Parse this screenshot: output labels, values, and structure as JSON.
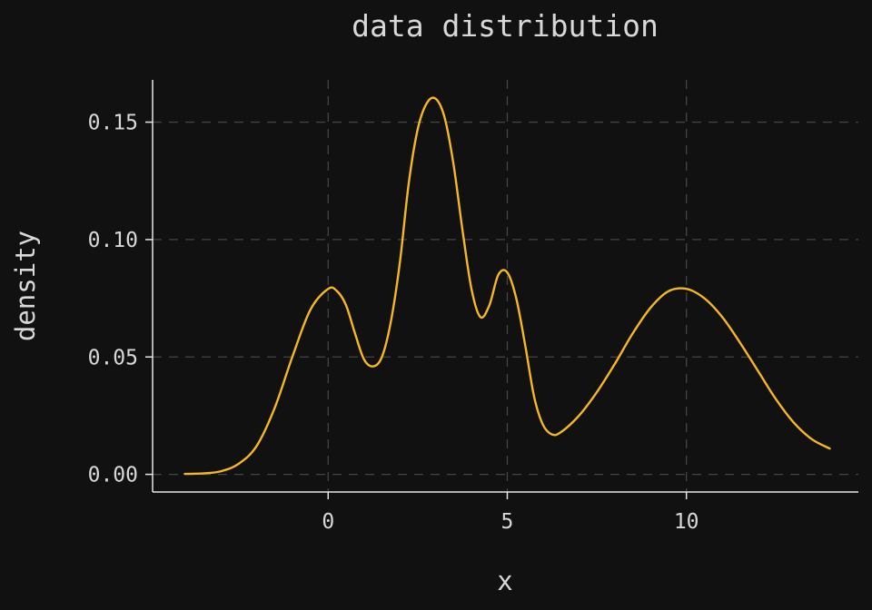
{
  "chart_data": {
    "type": "line",
    "title": "data distribution",
    "xlabel": "x",
    "ylabel": "density",
    "xlim": [
      -4.9,
      14.8
    ],
    "ylim": [
      -0.0075,
      0.168
    ],
    "xticks": [
      0,
      5,
      10
    ],
    "yticks": [
      0.0,
      0.05,
      0.1,
      0.15
    ],
    "xtick_labels": [
      "0",
      "5",
      "10"
    ],
    "ytick_labels": [
      "0.00",
      "0.05",
      "0.10",
      "0.15"
    ],
    "grid": true,
    "legend": "none",
    "series": [
      {
        "color": "#f5b820",
        "x": [
          -4.0,
          -3.5,
          -3.0,
          -2.5,
          -2.0,
          -1.5,
          -1.0,
          -0.5,
          0.0,
          0.25,
          0.5,
          0.75,
          1.0,
          1.25,
          1.5,
          1.75,
          2.0,
          2.25,
          2.5,
          2.75,
          3.0,
          3.25,
          3.5,
          3.75,
          4.0,
          4.25,
          4.5,
          4.75,
          5.0,
          5.25,
          5.5,
          5.75,
          6.0,
          6.25,
          6.5,
          7.0,
          7.5,
          8.0,
          8.5,
          9.0,
          9.5,
          10.0,
          10.5,
          11.0,
          11.5,
          12.0,
          12.5,
          13.0,
          13.5,
          14.0
        ],
        "y": [
          0.0002,
          0.0004,
          0.0013,
          0.0045,
          0.012,
          0.028,
          0.05,
          0.07,
          0.079,
          0.078,
          0.072,
          0.06,
          0.049,
          0.046,
          0.05,
          0.065,
          0.09,
          0.124,
          0.147,
          0.158,
          0.16,
          0.152,
          0.132,
          0.104,
          0.079,
          0.067,
          0.072,
          0.085,
          0.086,
          0.075,
          0.055,
          0.033,
          0.021,
          0.017,
          0.018,
          0.025,
          0.035,
          0.047,
          0.06,
          0.071,
          0.078,
          0.079,
          0.075,
          0.067,
          0.056,
          0.044,
          0.032,
          0.022,
          0.015,
          0.011
        ]
      }
    ]
  }
}
